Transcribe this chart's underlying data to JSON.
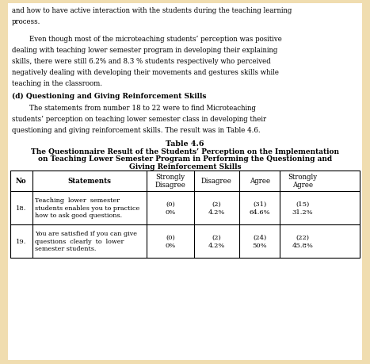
{
  "background_color": "#f0ddb0",
  "page_bg": "#ffffff",
  "body_text": [
    "and how to have active interaction with the students during the teaching learning",
    "process.",
    "",
    "        Even though most of the microteaching students’ perception was positive",
    "dealing with teaching lower semester program in developing their explaining",
    "skills, there were still 6.2% and 8.3 % students respectively who perceived",
    "negatively dealing with developing their movements and gestures skills while",
    "teaching in the classroom."
  ],
  "section_heading": "(d) Questioning and Giving Reinforcement Skills",
  "body_text2": [
    "        The statements from number 18 to 22 were to find Microteaching",
    "students’ perception on teaching lower semester class in developing their",
    "questioning and giving reinforcement skills. The result was in Table 4.6."
  ],
  "table_title_line1": "Table 4.6",
  "table_title_line2": "The Questionnaire Result of the Students’ Perception on the Implementation",
  "table_title_line3": "on Teaching Lower Semester Program in Performing the Questioning and",
  "table_title_line4": "Giving Reinforcement Skills",
  "col_headers": [
    "No",
    "Statements",
    "Strongly\nDisagree",
    "Disagree",
    "Agree",
    "Strongly\nAgree"
  ],
  "rows": [
    {
      "no": "18.",
      "statement": "Teaching  lower  semester\nstudents enables you to practice\nhow to ask good questions.",
      "sd": "(0)\n0%",
      "d": "(2)\n4.2%",
      "a": "(31)\n64.6%",
      "sa": "(15)\n31.2%"
    },
    {
      "no": "19.",
      "statement": "You are satisfied if you can give\nquestions  clearly  to  lower\nsemester students.",
      "sd": "(0)\n0%",
      "d": "(2)\n4.2%",
      "a": "(24)\n50%",
      "sa": "(22)\n45.8%"
    }
  ],
  "fs_body": 6.2,
  "fs_heading": 6.5,
  "fs_table_title": 6.8,
  "fs_table_header": 6.2,
  "fs_table_cell": 6.0
}
